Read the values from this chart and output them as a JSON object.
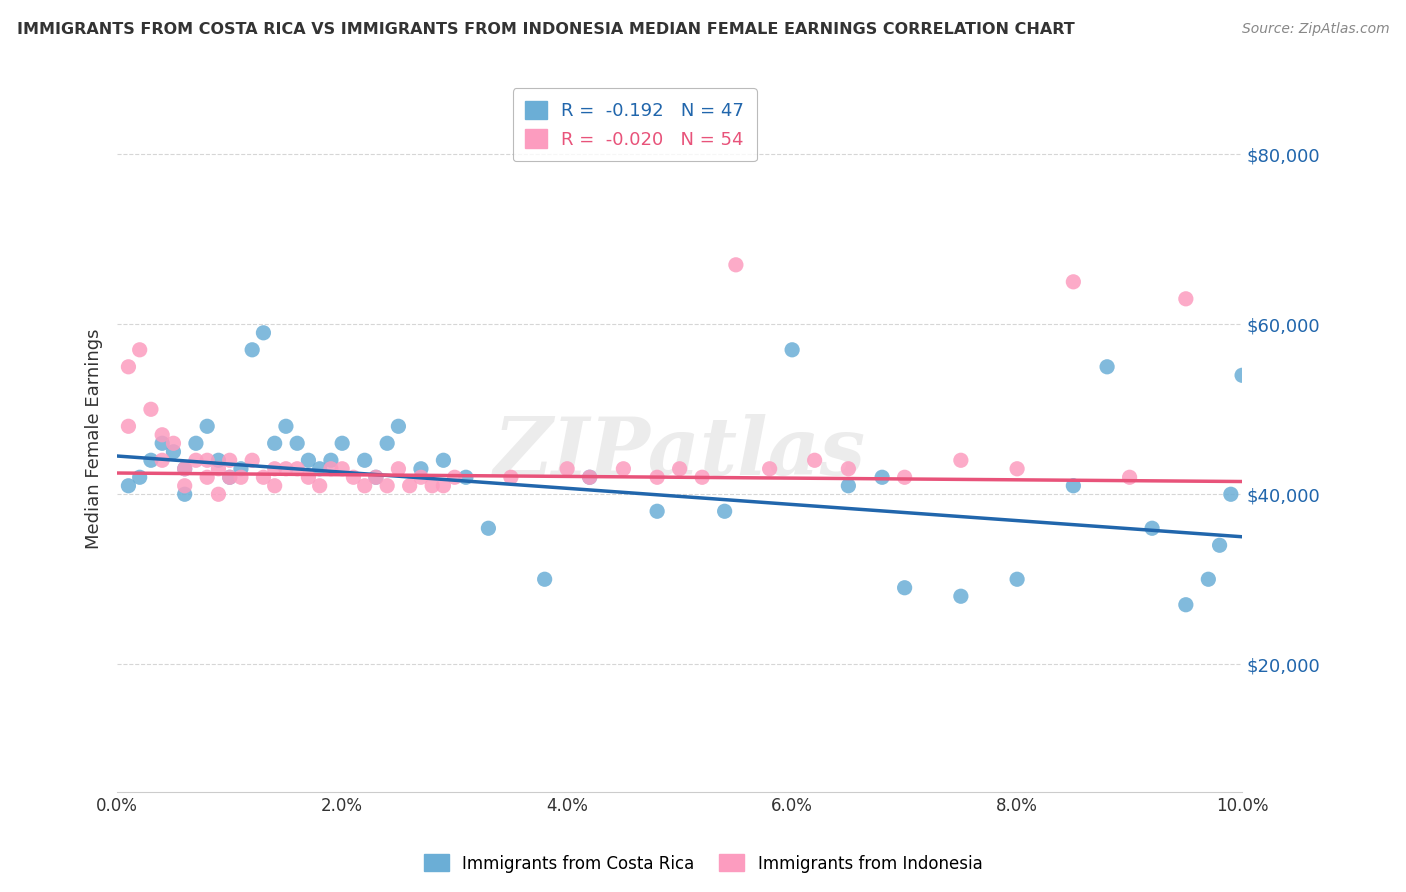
{
  "title": "IMMIGRANTS FROM COSTA RICA VS IMMIGRANTS FROM INDONESIA MEDIAN FEMALE EARNINGS CORRELATION CHART",
  "source": "Source: ZipAtlas.com",
  "ylabel": "Median Female Earnings",
  "xmin": 0.0,
  "xmax": 0.1,
  "ymin": 5000,
  "ymax": 88000,
  "yticks": [
    20000,
    40000,
    60000,
    80000
  ],
  "ytick_labels": [
    "$20,000",
    "$40,000",
    "$60,000",
    "$80,000"
  ],
  "xticks": [
    0.0,
    0.02,
    0.04,
    0.06,
    0.08,
    0.1
  ],
  "xtick_labels": [
    "0.0%",
    "2.0%",
    "4.0%",
    "6.0%",
    "8.0%",
    "10.0%"
  ],
  "costa_rica_color": "#6baed6",
  "indonesia_color": "#fc9cbf",
  "costa_rica_line_color": "#2166ac",
  "indonesia_line_color": "#e8537a",
  "costa_rica_R": -0.192,
  "costa_rica_N": 47,
  "indonesia_R": -0.02,
  "indonesia_N": 54,
  "watermark": "ZIPatlas",
  "costa_rica_x": [
    0.001,
    0.002,
    0.003,
    0.004,
    0.005,
    0.006,
    0.006,
    0.007,
    0.008,
    0.009,
    0.01,
    0.011,
    0.012,
    0.013,
    0.014,
    0.015,
    0.016,
    0.017,
    0.018,
    0.019,
    0.02,
    0.022,
    0.023,
    0.024,
    0.025,
    0.027,
    0.029,
    0.031,
    0.033,
    0.038,
    0.042,
    0.048,
    0.054,
    0.06,
    0.065,
    0.068,
    0.07,
    0.075,
    0.08,
    0.085,
    0.088,
    0.092,
    0.095,
    0.097,
    0.098,
    0.099,
    0.1
  ],
  "costa_rica_y": [
    41000,
    42000,
    44000,
    46000,
    45000,
    40000,
    43000,
    46000,
    48000,
    44000,
    42000,
    43000,
    57000,
    59000,
    46000,
    48000,
    46000,
    44000,
    43000,
    44000,
    46000,
    44000,
    42000,
    46000,
    48000,
    43000,
    44000,
    42000,
    36000,
    30000,
    42000,
    38000,
    38000,
    57000,
    41000,
    42000,
    29000,
    28000,
    30000,
    41000,
    55000,
    36000,
    27000,
    30000,
    34000,
    40000,
    54000
  ],
  "indonesia_x": [
    0.001,
    0.001,
    0.002,
    0.003,
    0.004,
    0.004,
    0.005,
    0.006,
    0.006,
    0.007,
    0.008,
    0.008,
    0.009,
    0.009,
    0.01,
    0.01,
    0.011,
    0.012,
    0.013,
    0.014,
    0.014,
    0.015,
    0.016,
    0.017,
    0.018,
    0.019,
    0.02,
    0.021,
    0.022,
    0.023,
    0.024,
    0.025,
    0.026,
    0.027,
    0.028,
    0.029,
    0.03,
    0.035,
    0.04,
    0.042,
    0.045,
    0.048,
    0.05,
    0.052,
    0.055,
    0.058,
    0.062,
    0.065,
    0.07,
    0.075,
    0.08,
    0.085,
    0.09,
    0.095
  ],
  "indonesia_y": [
    55000,
    48000,
    57000,
    50000,
    47000,
    44000,
    46000,
    43000,
    41000,
    44000,
    42000,
    44000,
    43000,
    40000,
    44000,
    42000,
    42000,
    44000,
    42000,
    41000,
    43000,
    43000,
    43000,
    42000,
    41000,
    43000,
    43000,
    42000,
    41000,
    42000,
    41000,
    43000,
    41000,
    42000,
    41000,
    41000,
    42000,
    42000,
    43000,
    42000,
    43000,
    42000,
    43000,
    42000,
    67000,
    43000,
    44000,
    43000,
    42000,
    44000,
    43000,
    65000,
    42000,
    63000
  ],
  "cr_trend_x0": 0.0,
  "cr_trend_y0": 44500,
  "cr_trend_x1": 0.1,
  "cr_trend_y1": 35000,
  "id_trend_x0": 0.0,
  "id_trend_y0": 42500,
  "id_trend_x1": 0.1,
  "id_trend_y1": 41500
}
